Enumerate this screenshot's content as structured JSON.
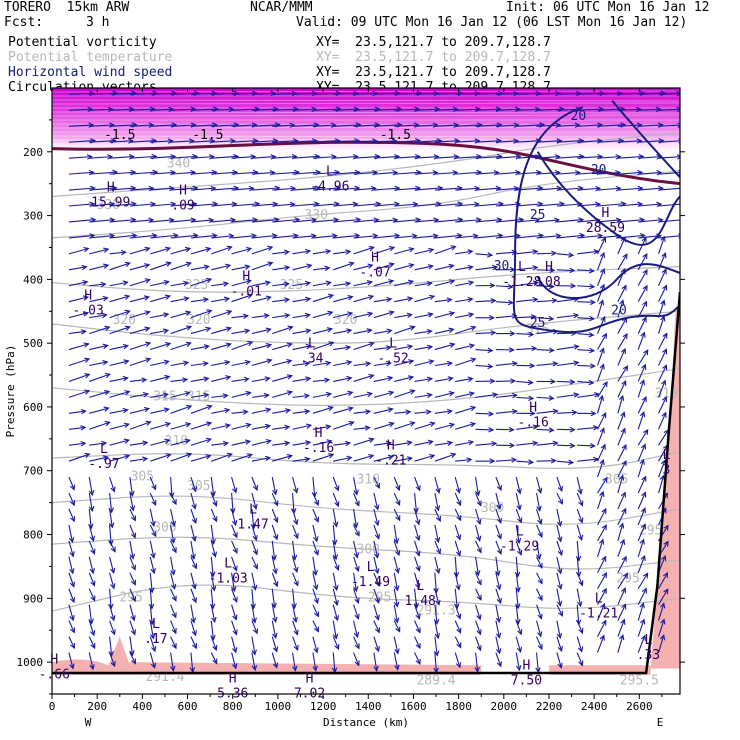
{
  "header": {
    "model": "TORERO  15km ARW",
    "center": "NCAR/MMM",
    "init": "Init: 06 UTC Mon 16 Jan 12",
    "fcst_label": "Fcst:",
    "fcst_value": "3 h",
    "valid": "Valid: 09 UTC Mon 16 Jan 12 (06 LST Mon 16 Jan 12)"
  },
  "legend": [
    {
      "label": "Potential vorticity",
      "color": "#000000",
      "xy": "XY=  23.5,121.7 to 209.7,128.7"
    },
    {
      "label": "Potential temperature",
      "color": "#b8b8b8",
      "xy": "XY=  23.5,121.7 to 209.7,128.7"
    },
    {
      "label": "Horizontal wind speed",
      "color": "#1a1a80",
      "xy": "XY=  23.5,121.7 to 209.7,128.7"
    },
    {
      "label": "Circulation vectors",
      "color": "#000000",
      "xy": "XY=  23.5,121.7 to 209.7,128.7"
    }
  ],
  "colors": {
    "pv_fill": "#e040e0",
    "pv_light": "#f5b0b0",
    "theta": "#b8b8b8",
    "wind": "#1a1a80",
    "vectors": "#1a1aa0"
  },
  "chart_data": {
    "type": "cross-section",
    "xlabel": "Distance (km)",
    "ylabel": "Pressure (hPa)",
    "xlim": [
      0,
      2780
    ],
    "ylim": [
      1050,
      100
    ],
    "y_scale": "linear-reversed",
    "x_ticks": [
      0,
      200,
      400,
      600,
      800,
      1000,
      1200,
      1400,
      1600,
      1800,
      2000,
      2200,
      2400,
      2600
    ],
    "y_ticks": [
      200,
      300,
      400,
      500,
      600,
      700,
      800,
      900,
      1000
    ],
    "x_end_labels": {
      "left": "W",
      "right": "E"
    },
    "theta_contours": [
      {
        "value": "340",
        "points": [
          [
            0,
            270
          ],
          [
            600,
            255
          ],
          [
            1200,
            240
          ],
          [
            1800,
            215
          ],
          [
            2200,
            190
          ],
          [
            2780,
            170
          ]
        ]
      },
      {
        "value": "330",
        "points": [
          [
            0,
            335
          ],
          [
            600,
            320
          ],
          [
            1100,
            300
          ],
          [
            1700,
            285
          ],
          [
            2150,
            250
          ],
          [
            2780,
            230
          ]
        ]
      },
      {
        "value": "325",
        "points": [
          [
            0,
            405
          ],
          [
            500,
            420
          ],
          [
            1000,
            420
          ],
          [
            1500,
            410
          ],
          [
            2100,
            390
          ],
          [
            2780,
            380
          ]
        ]
      },
      {
        "value": "320",
        "points": [
          [
            0,
            470
          ],
          [
            500,
            490
          ],
          [
            1000,
            500
          ],
          [
            1500,
            500
          ],
          [
            2100,
            470
          ],
          [
            2780,
            450
          ]
        ]
      },
      {
        "value": "315",
        "points": [
          [
            0,
            570
          ],
          [
            600,
            590
          ],
          [
            1200,
            600
          ],
          [
            1800,
            590
          ],
          [
            2400,
            560
          ],
          [
            2780,
            540
          ]
        ]
      },
      {
        "value": "310",
        "points": [
          [
            0,
            680
          ],
          [
            600,
            670
          ],
          [
            1200,
            690
          ],
          [
            1800,
            690
          ],
          [
            2400,
            700
          ],
          [
            2780,
            670
          ]
        ]
      },
      {
        "value": "305",
        "points": [
          [
            0,
            750
          ],
          [
            600,
            735
          ],
          [
            1200,
            760
          ],
          [
            1800,
            770
          ],
          [
            2300,
            790
          ],
          [
            2780,
            760
          ]
        ]
      },
      {
        "value": "300",
        "points": [
          [
            0,
            815
          ],
          [
            600,
            800
          ],
          [
            1200,
            820
          ],
          [
            1800,
            830
          ],
          [
            2300,
            860
          ],
          [
            2780,
            840
          ]
        ]
      },
      {
        "value": "295",
        "points": [
          [
            0,
            920
          ],
          [
            600,
            870
          ],
          [
            1300,
            900
          ],
          [
            1800,
            905
          ],
          [
            2300,
            920
          ],
          [
            2780,
            900
          ]
        ]
      }
    ],
    "pv_contour_values": [
      "-1.5",
      "-1.5",
      "-1.5"
    ],
    "wind_contour_values": [
      "20",
      "25",
      "30",
      "20",
      "25",
      "20"
    ],
    "theta_labels": [
      "340",
      "330",
      "330",
      "325",
      "325",
      "320",
      "320",
      "320",
      "315",
      "315",
      "315",
      "310",
      "310",
      "310",
      "305",
      "305",
      "305",
      "300",
      "300",
      "300",
      "295",
      "295",
      "295",
      "295",
      "291.3",
      "291.4",
      "289.4",
      "295.5"
    ],
    "extrema": [
      {
        "type": "L",
        "value": "-4.96",
        "x": 1230,
        "p": 240
      },
      {
        "type": "H",
        "value": "15.99",
        "x": 260,
        "p": 265
      },
      {
        "type": "H",
        "value": ".09",
        "x": 580,
        "p": 270
      },
      {
        "type": "H",
        "value": "-.07",
        "x": 1430,
        "p": 375
      },
      {
        "type": "H",
        "value": "-.01",
        "x": 860,
        "p": 405
      },
      {
        "type": "H",
        "value": "-.03",
        "x": 160,
        "p": 435
      },
      {
        "type": "L",
        "value": ".34",
        "x": 1150,
        "p": 510
      },
      {
        "type": "L",
        "value": "-.52",
        "x": 1510,
        "p": 510
      },
      {
        "type": "L",
        "value": "-1.28",
        "x": 2080,
        "p": 390
      },
      {
        "type": "H",
        "value": ".08",
        "x": 2200,
        "p": 390
      },
      {
        "type": "H",
        "value": "28.59",
        "x": 2450,
        "p": 305
      },
      {
        "type": "H",
        "value": "-.16",
        "x": 2130,
        "p": 610
      },
      {
        "type": "H",
        "value": "-.16",
        "x": 1180,
        "p": 650
      },
      {
        "type": "H",
        "value": "-.21",
        "x": 1500,
        "p": 670
      },
      {
        "type": "L",
        "value": "-.97",
        "x": 230,
        "p": 675
      },
      {
        "type": "L",
        "value": "1.47",
        "x": 890,
        "p": 770
      },
      {
        "type": "L",
        "value": "-1.29",
        "x": 2070,
        "p": 805
      },
      {
        "type": "L",
        "value": "-1.03",
        "x": 780,
        "p": 855
      },
      {
        "type": "L",
        "value": "-1.49",
        "x": 1410,
        "p": 860
      },
      {
        "type": "L",
        "value": "1.48",
        "x": 1630,
        "p": 890
      },
      {
        "type": "L",
        "value": "-1.21",
        "x": 2420,
        "p": 910
      },
      {
        "type": "L",
        "value": ".17",
        "x": 460,
        "p": 950
      },
      {
        "type": "L",
        "value": ".33",
        "x": 2640,
        "p": 975
      },
      {
        "type": "H",
        "value": "-.66",
        "x": 10,
        "p": 1005
      },
      {
        "type": "H",
        "value": "5.36",
        "x": 800,
        "p": 1035
      },
      {
        "type": "H",
        "value": "7.02",
        "x": 1140,
        "p": 1035
      },
      {
        "type": "H",
        "value": "7.50",
        "x": 2100,
        "p": 1015
      },
      {
        "type": "L",
        "value": "3",
        "x": 2720,
        "p": 685
      }
    ]
  }
}
